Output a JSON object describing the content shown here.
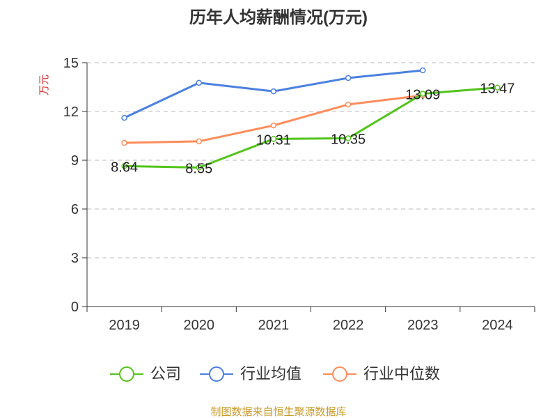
{
  "chart_data": {
    "type": "line",
    "title": "历年人均薪酬情况(万元)",
    "ylabel": "万元",
    "xlabel": "",
    "categories": [
      "2019",
      "2020",
      "2021",
      "2022",
      "2023",
      "2024"
    ],
    "ylim": [
      0,
      15
    ],
    "yticks": [
      0,
      3,
      6,
      9,
      12,
      15
    ],
    "grid": true,
    "legend_position": "bottom",
    "series": [
      {
        "name": "公司",
        "color": "#52c41a",
        "values": [
          8.64,
          8.55,
          10.31,
          10.35,
          13.09,
          13.47
        ],
        "labels": [
          "8.64",
          "8.55",
          "10.31",
          "10.35",
          "13.09",
          "13.47"
        ]
      },
      {
        "name": "行业均值",
        "color": "#4a80e0",
        "values": [
          11.61,
          13.76,
          13.24,
          14.06,
          14.53,
          null
        ]
      },
      {
        "name": "行业中位数",
        "color": "#ff8c5a",
        "values": [
          10.07,
          10.16,
          11.14,
          12.43,
          12.99,
          null
        ]
      }
    ],
    "source": "制图数据来自恒生聚源数据库"
  }
}
